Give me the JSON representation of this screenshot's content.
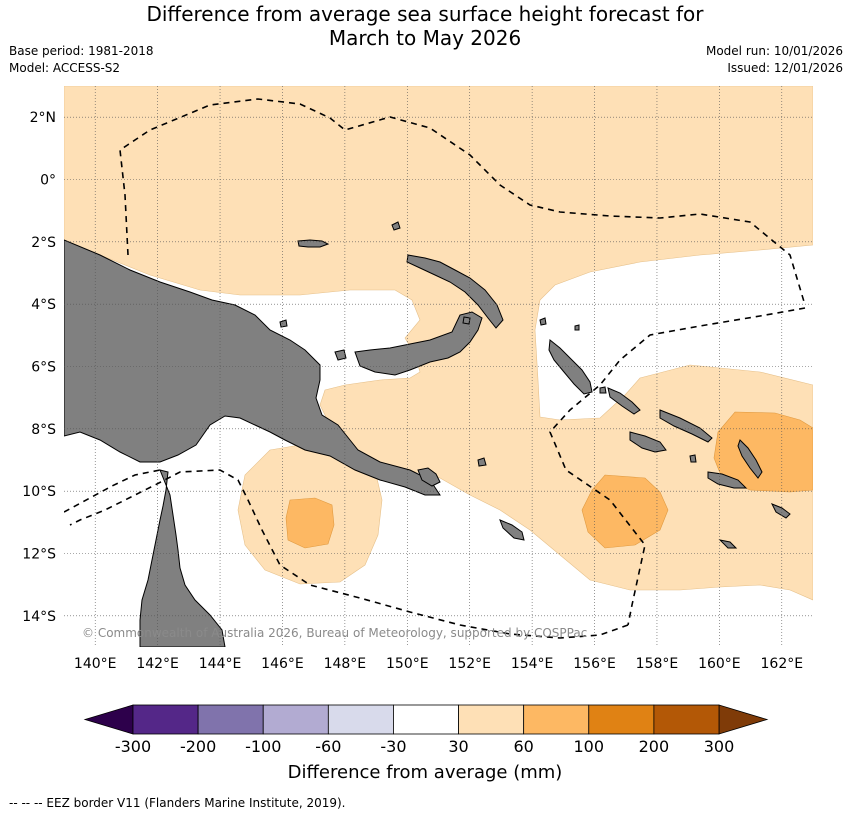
{
  "title_line1": "Difference from average sea surface height forecast for",
  "title_line2": "March to May 2026",
  "base_period": "Base period: 1981-2018",
  "model": "Model: ACCESS-S2",
  "model_run": "Model run: 10/01/2026",
  "issued": "Issued: 12/01/2026",
  "copyright": "© Commonwealth of Australia 2026, Bureau of Meteorology, supported by COSPPac",
  "footer": "--  --  -- EEZ border V11 (Flanders Marine Institute, 2019).",
  "map": {
    "lon_range": [
      139,
      163
    ],
    "lat_range": [
      -15,
      3
    ],
    "lat_ticks": [
      {
        "value": 2,
        "label": "2°N"
      },
      {
        "value": 0,
        "label": "0°"
      },
      {
        "value": -2,
        "label": "2°S"
      },
      {
        "value": -4,
        "label": "4°S"
      },
      {
        "value": -6,
        "label": "6°S"
      },
      {
        "value": -8,
        "label": "8°S"
      },
      {
        "value": -10,
        "label": "10°S"
      },
      {
        "value": -12,
        "label": "12°S"
      },
      {
        "value": -14,
        "label": "14°S"
      }
    ],
    "lon_ticks": [
      {
        "value": 140,
        "label": "140°E"
      },
      {
        "value": 142,
        "label": "142°E"
      },
      {
        "value": 144,
        "label": "144°E"
      },
      {
        "value": 146,
        "label": "146°E"
      },
      {
        "value": 148,
        "label": "148°E"
      },
      {
        "value": 150,
        "label": "150°E"
      },
      {
        "value": 152,
        "label": "152°E"
      },
      {
        "value": 154,
        "label": "154°E"
      },
      {
        "value": 156,
        "label": "156°E"
      },
      {
        "value": 158,
        "label": "158°E"
      },
      {
        "value": 160,
        "label": "160°E"
      },
      {
        "value": 162,
        "label": "162°E"
      }
    ]
  },
  "colorbar": {
    "title": "Difference from average (mm)",
    "ticks": [
      "-300",
      "-200",
      "-100",
      "-60",
      "-30",
      "30",
      "60",
      "100",
      "200",
      "300"
    ],
    "low_extend_color": "#2d004b",
    "high_extend_color": "#7f3b08",
    "bins": [
      {
        "from": "-300",
        "to": "-200",
        "color": "#542788"
      },
      {
        "from": "-200",
        "to": "-100",
        "color": "#8073ac"
      },
      {
        "from": "-100",
        "to": "-60",
        "color": "#b2abd2"
      },
      {
        "from": "-60",
        "to": "-30",
        "color": "#d8daeb"
      },
      {
        "from": "-30",
        "to": "30",
        "color": "#ffffff"
      },
      {
        "from": "30",
        "to": "60",
        "color": "#fee0b6"
      },
      {
        "from": "60",
        "to": "100",
        "color": "#fdb863"
      },
      {
        "from": "100",
        "to": "200",
        "color": "#e08214"
      },
      {
        "from": "200",
        "to": "300",
        "color": "#b35806"
      }
    ]
  },
  "colors": {
    "land": "#808080",
    "anomaly_30_60": "#fee0b6",
    "anomaly_60_100": "#fdb863",
    "ocean_neutral": "#ffffff"
  }
}
